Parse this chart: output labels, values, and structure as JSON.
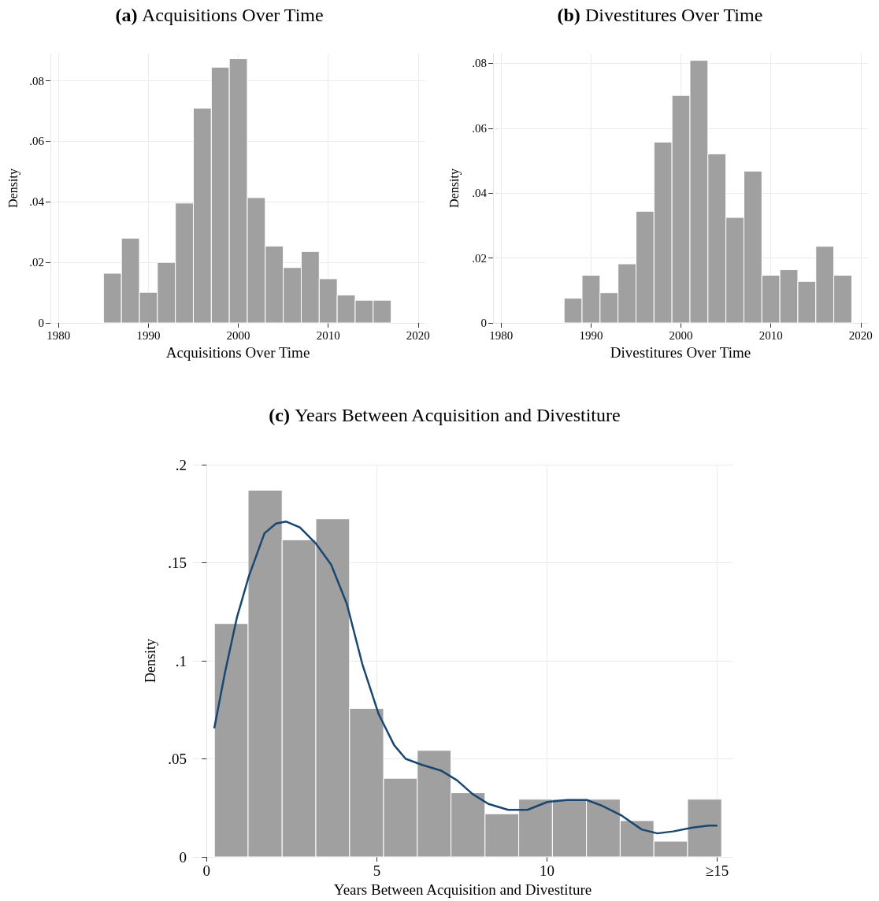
{
  "chart_data": [
    {
      "type": "histogram",
      "title": "(a) Acquisitions Over Time",
      "xlabel": "Acquisitions Over Time",
      "ylabel": "Density",
      "color": "#a0a0a0",
      "grid": true,
      "bins": [
        1985,
        1987,
        1989,
        1991,
        1993,
        1995,
        1997,
        1999,
        2001,
        2003,
        2005,
        2007,
        2009,
        2011,
        2013,
        2015,
        2017
      ],
      "values": [
        0.0164,
        0.028,
        0.0101,
        0.02,
        0.0396,
        0.071,
        0.0845,
        0.0873,
        0.0414,
        0.0254,
        0.0183,
        0.0236,
        0.0146,
        0.0092,
        0.0075,
        0.0075
      ],
      "xlim": [
        1979.1,
        2020.8
      ],
      "xticks": [
        1980,
        1990,
        2000,
        2010,
        2020
      ],
      "ylim": [
        0,
        0.089
      ],
      "yticks": [
        {
          "value": 0,
          "label": "0"
        },
        {
          "value": 0.02,
          "label": ".02"
        },
        {
          "value": 0.04,
          "label": ".04"
        },
        {
          "value": 0.06,
          "label": ".06"
        },
        {
          "value": 0.08,
          "label": ".08"
        }
      ]
    },
    {
      "type": "histogram",
      "title": "(b) Divestitures Over Time",
      "xlabel": "Divestitures Over Time",
      "ylabel": "Density",
      "color": "#a0a0a0",
      "grid": true,
      "bins": [
        1987,
        1989,
        1991,
        1993,
        1995,
        1997,
        1999,
        2001,
        2003,
        2005,
        2007,
        2009,
        2011,
        2013,
        2015,
        2017,
        2019
      ],
      "values": [
        0.0076,
        0.0147,
        0.0093,
        0.0182,
        0.0344,
        0.0557,
        0.0701,
        0.0809,
        0.0521,
        0.0325,
        0.0468,
        0.0147,
        0.0164,
        0.0128,
        0.0236,
        0.0147
      ],
      "xlim": [
        1979.1,
        2020.8
      ],
      "xticks": [
        1980,
        1990,
        2000,
        2010,
        2020
      ],
      "ylim": [
        0,
        0.083
      ],
      "yticks": [
        {
          "value": 0,
          "label": "0"
        },
        {
          "value": 0.02,
          "label": ".02"
        },
        {
          "value": 0.04,
          "label": ".04"
        },
        {
          "value": 0.06,
          "label": ".06"
        },
        {
          "value": 0.08,
          "label": ".08"
        }
      ]
    },
    {
      "type": "histogram",
      "title": "(c) Years Between Acquisition and Divestiture",
      "xlabel": "Years Between Acquisition and Divestiture",
      "ylabel": "Density",
      "grid": true,
      "series": [
        {
          "type": "histogram",
          "color": "#a0a0a0",
          "bins": [
            0.23,
            1.22,
            2.22,
            3.21,
            4.2,
            5.2,
            6.19,
            7.18,
            8.18,
            9.17,
            10.16,
            11.16,
            12.15,
            13.14,
            14.13,
            15.13
          ],
          "values": [
            0.119,
            0.187,
            0.1617,
            0.1724,
            0.0757,
            0.0401,
            0.0543,
            0.0327,
            0.022,
            0.0294,
            0.0294,
            0.0294,
            0.0185,
            0.008,
            0.0294
          ]
        },
        {
          "type": "line",
          "color": "#1a476f",
          "x": [
            0.23,
            0.54,
            0.89,
            1.24,
            1.7,
            2.04,
            2.33,
            2.74,
            3.2,
            3.66,
            4.12,
            4.58,
            5.05,
            5.51,
            5.85,
            6.32,
            6.89,
            7.36,
            7.82,
            8.28,
            8.86,
            9.43,
            10.01,
            10.59,
            11.17,
            11.63,
            12.2,
            12.78,
            13.24,
            13.71,
            14.28,
            14.75,
            14.98
          ],
          "values": [
            0.066,
            0.094,
            0.122,
            0.143,
            0.165,
            0.17,
            0.171,
            0.168,
            0.16,
            0.149,
            0.129,
            0.098,
            0.073,
            0.057,
            0.05,
            0.047,
            0.044,
            0.039,
            0.032,
            0.027,
            0.024,
            0.024,
            0.028,
            0.029,
            0.029,
            0.026,
            0.021,
            0.014,
            0.012,
            0.013,
            0.015,
            0.016,
            0.016
          ]
        }
      ],
      "xlim": [
        -0.4,
        15.45
      ],
      "xticks": [
        0,
        5,
        10,
        {
          "value": 15,
          "label": "≥15"
        }
      ],
      "ylim": [
        0,
        0.2
      ],
      "yticks": [
        {
          "value": 0,
          "label": "0"
        },
        {
          "value": 0.05,
          "label": ".05"
        },
        {
          "value": 0.1,
          "label": ".1"
        },
        {
          "value": 0.15,
          "label": ".15"
        },
        {
          "value": 0.2,
          "label": ".2"
        }
      ]
    }
  ]
}
